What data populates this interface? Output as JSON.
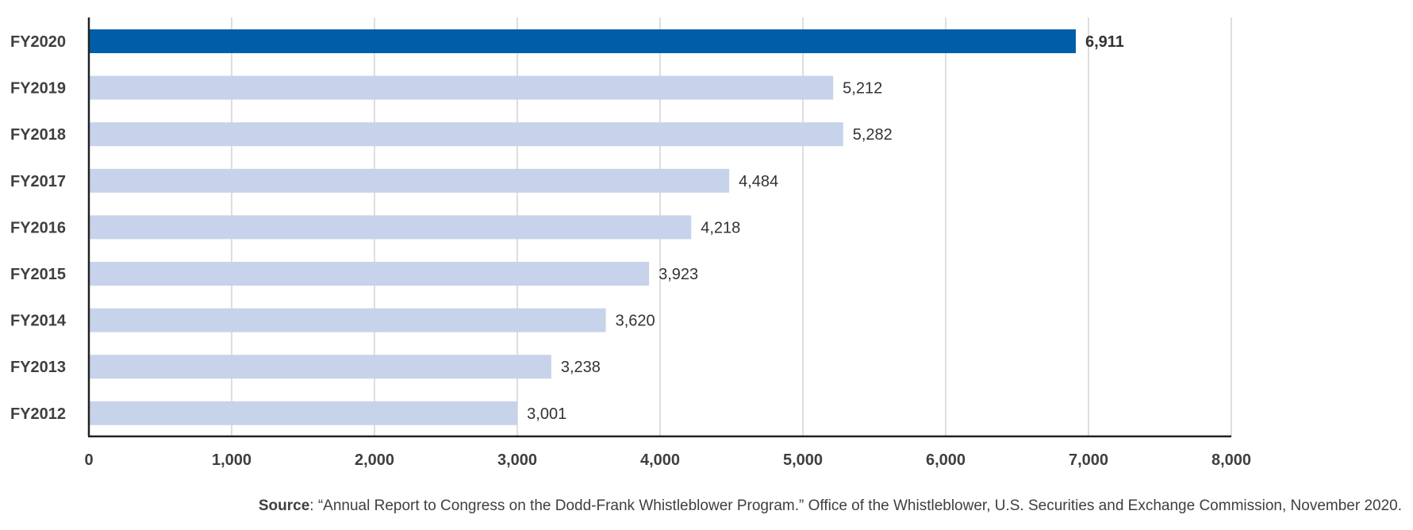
{
  "chart_data": {
    "type": "bar",
    "orientation": "horizontal",
    "categories": [
      "FY2020",
      "FY2019",
      "FY2018",
      "FY2017",
      "FY2016",
      "FY2015",
      "FY2014",
      "FY2013",
      "FY2012"
    ],
    "values": [
      6911,
      5212,
      5282,
      4484,
      4218,
      3923,
      3620,
      3238,
      3001
    ],
    "value_labels": [
      "6,911",
      "5,212",
      "5,282",
      "4,484",
      "4,218",
      "3,923",
      "3,620",
      "3,238",
      "3,001"
    ],
    "highlight_index": 0,
    "xlim": [
      0,
      8000
    ],
    "x_ticks": [
      0,
      1000,
      2000,
      3000,
      4000,
      5000,
      6000,
      7000,
      8000
    ],
    "x_tick_labels": [
      "0",
      "1,000",
      "2,000",
      "3,000",
      "4,000",
      "5,000",
      "6,000",
      "7,000",
      "8,000"
    ],
    "grid": "vertical",
    "title": "",
    "xlabel": "",
    "ylabel": "",
    "colors": {
      "highlight": "#005EA8",
      "bar": "#C7D3EA",
      "grid": "#D3D3D3",
      "axis": "#222222"
    }
  },
  "source": {
    "label": "Source",
    "text": ": “Annual Report to Congress on the Dodd-Frank Whistleblower Program.” Office of the Whistleblower, U.S. Securities and Exchange Commission, November 2020."
  }
}
